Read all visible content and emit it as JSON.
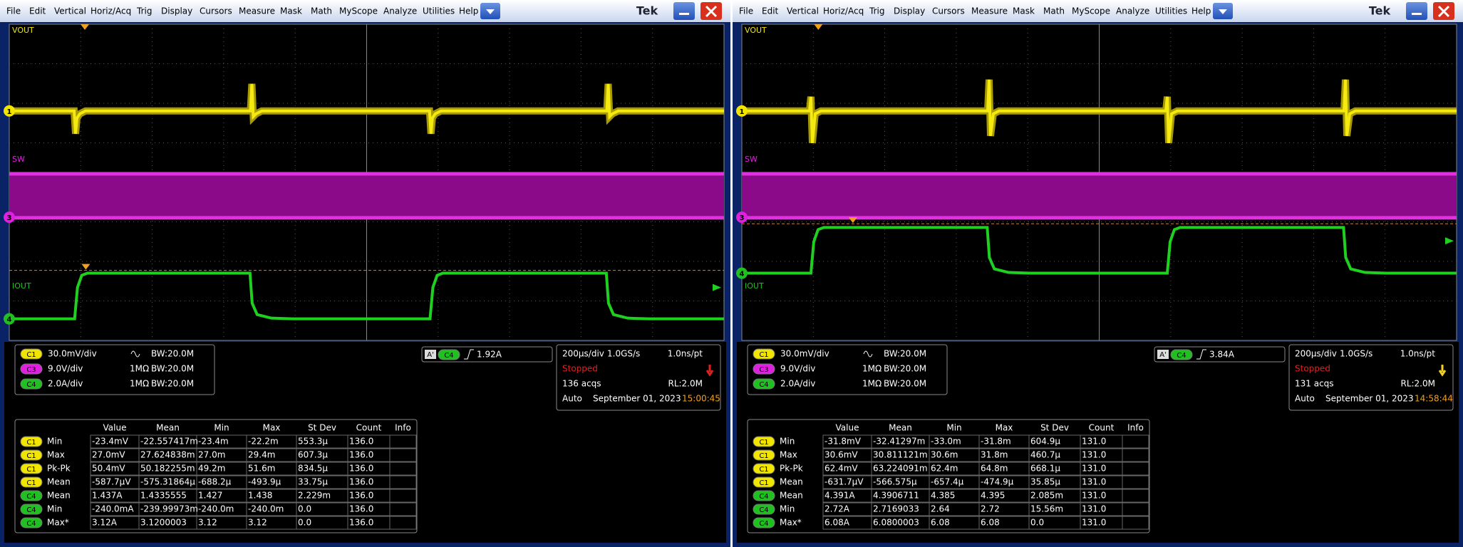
{
  "menu": [
    "File",
    "Edit",
    "Vertical",
    "Horiz/Acq",
    "Trig",
    "Display",
    "Cursors",
    "Measure",
    "Mask",
    "Math",
    "MyScope",
    "Analyze",
    "Utilities",
    "Help"
  ],
  "brand": "Tek",
  "trace_labels": [
    "VOUT",
    "SW",
    "IOUT"
  ],
  "channel_markers": [
    "1",
    "3",
    "4"
  ],
  "measurement_columns": [
    "Value",
    "Mean",
    "Min",
    "Max",
    "St Dev",
    "Count",
    "Info"
  ],
  "panels": [
    {
      "channels": [
        {
          "badge": "C1",
          "scale": "30.0mV/div",
          "bandwidth": "BW:20.0M"
        },
        {
          "badge": "C3",
          "scale": "9.0V/div",
          "impedance": "1MΩ",
          "bandwidth": "BW:20.0M"
        },
        {
          "badge": "C4",
          "scale": "2.0A/div",
          "impedance": "1MΩ",
          "bandwidth": "BW:20.0M"
        }
      ],
      "trigger": {
        "source": "A'",
        "channel": "C4",
        "level": "1.92A"
      },
      "acquisition": {
        "timebase": "200µs/div",
        "sample_rate": "1.0GS/s",
        "resolution": "1.0ns/pt",
        "status": "Stopped",
        "acquisitions": "136 acqs",
        "record_length": "RL:2.0M",
        "mode": "Auto",
        "date": "September 01, 2023",
        "time": "15:00:45"
      },
      "measurements": [
        {
          "source": "C1",
          "name": "Min",
          "cells": [
            "-23.4mV",
            "-22.557417m",
            "-23.4m",
            "-22.2m",
            "553.3µ",
            "136.0"
          ]
        },
        {
          "source": "C1",
          "name": "Max",
          "cells": [
            "27.0mV",
            "27.624838m",
            "27.0m",
            "29.4m",
            "607.3µ",
            "136.0"
          ]
        },
        {
          "source": "C1",
          "name": "Pk-Pk",
          "cells": [
            "50.4mV",
            "50.182255m",
            "49.2m",
            "51.6m",
            "834.5µ",
            "136.0"
          ]
        },
        {
          "source": "C1",
          "name": "Mean",
          "cells": [
            "-587.7µV",
            "-575.31864µ",
            "-688.2µ",
            "-493.9µ",
            "33.75µ",
            "136.0"
          ]
        },
        {
          "source": "C4",
          "name": "Mean",
          "cells": [
            "1.437A",
            "1.4335555",
            "1.427",
            "1.438",
            "2.229m",
            "136.0"
          ]
        },
        {
          "source": "C4",
          "name": "Min",
          "cells": [
            "-240.0mA",
            "-239.99973m",
            "-240.0m",
            "-240.0m",
            "0.0",
            "136.0"
          ]
        },
        {
          "source": "C4",
          "name": "Max*",
          "cells": [
            "3.12A",
            "3.1200003",
            "3.12",
            "3.12",
            "0.0",
            "136.0"
          ]
        }
      ]
    },
    {
      "channels": [
        {
          "badge": "C1",
          "scale": "30.0mV/div",
          "bandwidth": "BW:20.0M"
        },
        {
          "badge": "C3",
          "scale": "9.0V/div",
          "impedance": "1MΩ",
          "bandwidth": "BW:20.0M"
        },
        {
          "badge": "C4",
          "scale": "2.0A/div",
          "impedance": "1MΩ",
          "bandwidth": "BW:20.0M"
        }
      ],
      "trigger": {
        "source": "A'",
        "channel": "C4",
        "level": "3.84A"
      },
      "acquisition": {
        "timebase": "200µs/div",
        "sample_rate": "1.0GS/s",
        "resolution": "1.0ns/pt",
        "status": "Stopped",
        "acquisitions": "131 acqs",
        "record_length": "RL:2.0M",
        "mode": "Auto",
        "date": "September 01, 2023",
        "time": "14:58:44"
      },
      "measurements": [
        {
          "source": "C1",
          "name": "Min",
          "cells": [
            "-31.8mV",
            "-32.41297m",
            "-33.0m",
            "-31.8m",
            "604.9µ",
            "131.0"
          ]
        },
        {
          "source": "C1",
          "name": "Max",
          "cells": [
            "30.6mV",
            "30.811121m",
            "30.6m",
            "31.8m",
            "460.7µ",
            "131.0"
          ]
        },
        {
          "source": "C1",
          "name": "Pk-Pk",
          "cells": [
            "62.4mV",
            "63.224091m",
            "62.4m",
            "64.8m",
            "668.1µ",
            "131.0"
          ]
        },
        {
          "source": "C1",
          "name": "Mean",
          "cells": [
            "-631.7µV",
            "-566.575µ",
            "-657.4µ",
            "-474.9µ",
            "35.85µ",
            "131.0"
          ]
        },
        {
          "source": "C4",
          "name": "Mean",
          "cells": [
            "4.391A",
            "4.3906711",
            "4.385",
            "4.395",
            "2.085m",
            "131.0"
          ]
        },
        {
          "source": "C4",
          "name": "Min",
          "cells": [
            "2.72A",
            "2.7169033",
            "2.64",
            "2.72",
            "15.56m",
            "131.0"
          ]
        },
        {
          "source": "C4",
          "name": "Max*",
          "cells": [
            "6.08A",
            "6.0800003",
            "6.08",
            "6.08",
            "0.0",
            "131.0"
          ]
        }
      ]
    }
  ]
}
